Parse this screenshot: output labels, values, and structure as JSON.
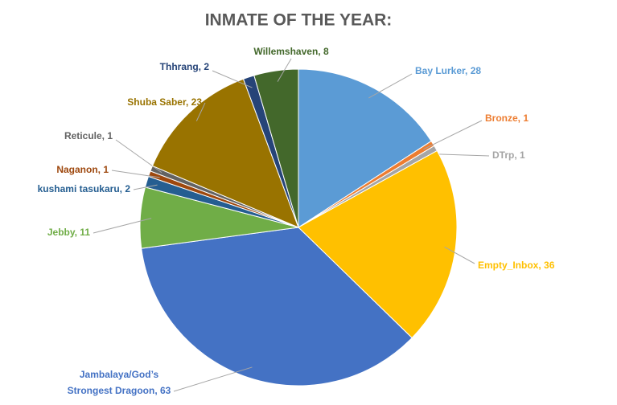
{
  "chart_data": {
    "type": "pie",
    "title": "INMATE OF THE YEAR:",
    "values": [
      28,
      1,
      1,
      36,
      63,
      11,
      2,
      1,
      1,
      23,
      2,
      8
    ],
    "value_labels": [
      "Bay Lurker, 28",
      "Bronze, 1",
      "DTrp, 1",
      "Empty_Inbox, 36",
      "Jambalaya/God’s\nStrongest Dragoon, 63",
      "Jebby, 11",
      "kushami tasukaru, 2",
      "Naganon, 1",
      "Reticule, 1",
      "Shuba Saber, 23",
      "Thhrang, 2",
      "Willemshaven, 8"
    ],
    "colors": [
      "#5b9bd5",
      "#ed7d31",
      "#a5a5a5",
      "#ffc000",
      "#4472c4",
      "#70ad47",
      "#255e91",
      "#9e480e",
      "#636363",
      "#997300",
      "#264478",
      "#43682b"
    ]
  }
}
